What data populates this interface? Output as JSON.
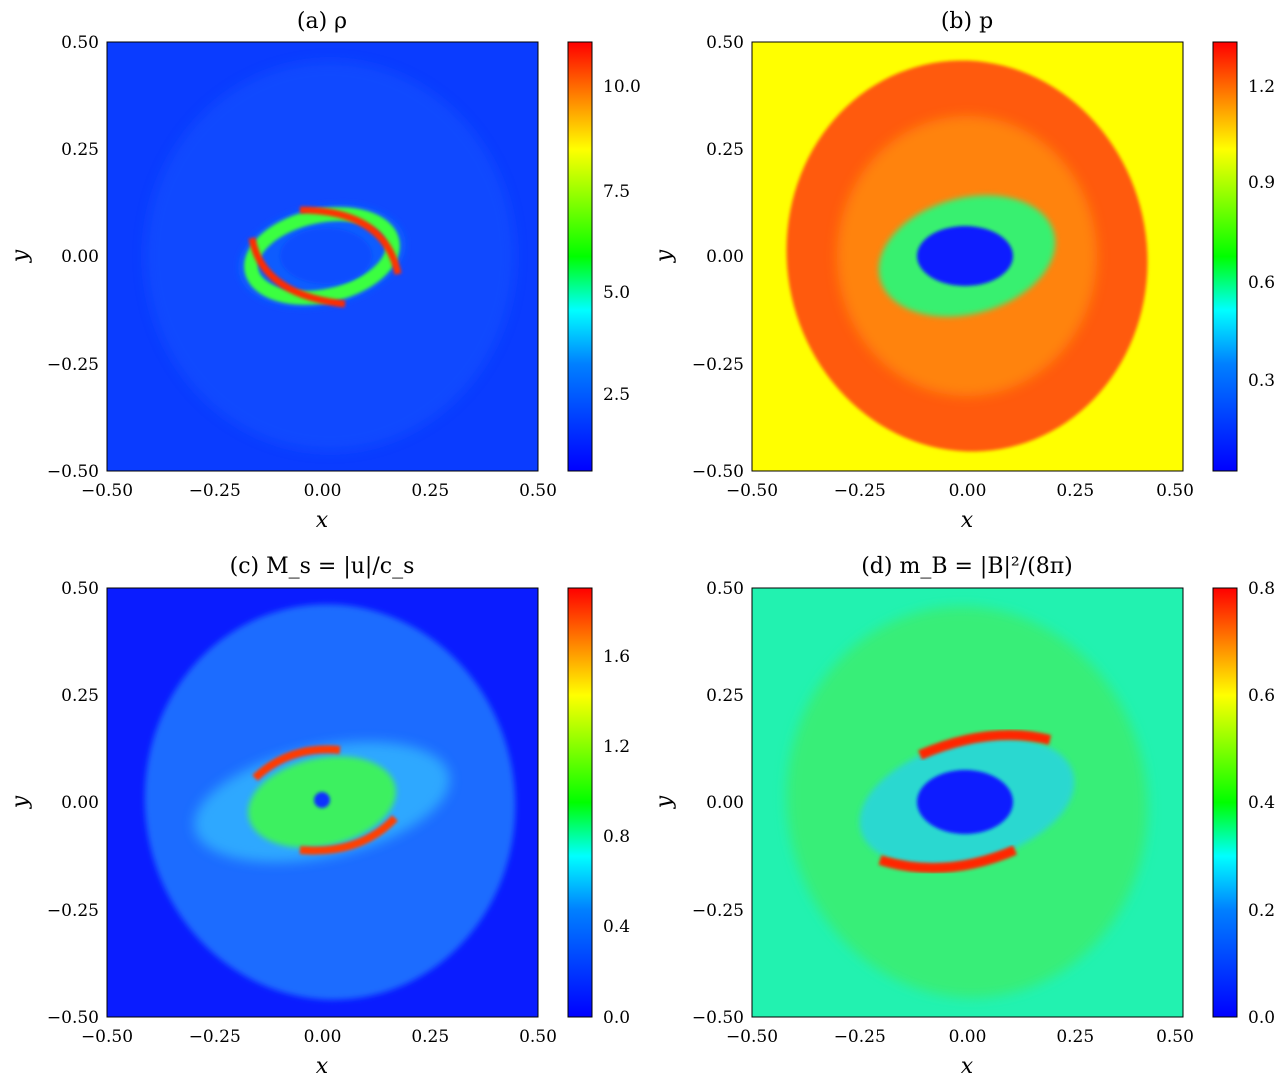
{
  "chart_data": [
    {
      "type": "heatmap",
      "panel": "a",
      "title": "(a) ρ",
      "xlabel": "x",
      "ylabel": "y",
      "xlim": [
        -0.5,
        0.5
      ],
      "ylim": [
        -0.5,
        0.5
      ],
      "xticks": [
        "−0.50",
        "−0.25",
        "0.00",
        "0.25",
        "0.50"
      ],
      "yticks": [
        "−0.50",
        "−0.25",
        "0.00",
        "0.25",
        "0.50"
      ],
      "colorbar": {
        "range": [
          0.5,
          11.2
        ],
        "ticks": [
          2.5,
          5.0,
          7.5,
          10.0
        ],
        "tick_labels": [
          "2.5",
          "5.0",
          "7.5",
          "10.0"
        ]
      },
      "background_value": 1.0,
      "features": [
        {
          "kind": "bubble",
          "cx": 0.02,
          "cy": 0.0,
          "rx": 0.42,
          "ry": 0.45,
          "value": 1.3
        },
        {
          "kind": "ring",
          "cx": 0.0,
          "cy": 0.0,
          "rx": 0.17,
          "ry": 0.09,
          "value": 6.5
        },
        {
          "kind": "arc",
          "cx": -0.13,
          "cy": -0.03,
          "value": 10.5
        },
        {
          "kind": "arc",
          "cx": 0.13,
          "cy": 0.03,
          "value": 10.5
        },
        {
          "kind": "core",
          "cx": 0.0,
          "cy": 0.0,
          "rx": 0.1,
          "ry": 0.06,
          "value": 1.0
        }
      ]
    },
    {
      "type": "heatmap",
      "panel": "b",
      "title": "(b) p",
      "xlabel": "x",
      "ylabel": "y",
      "xlim": [
        -0.5,
        0.5
      ],
      "ylim": [
        -0.5,
        0.5
      ],
      "xticks": [
        "−0.50",
        "−0.25",
        "0.00",
        "0.25",
        "0.50"
      ],
      "yticks": [
        "−0.50",
        "−0.25",
        "0.00",
        "0.25",
        "0.50"
      ],
      "colorbar": {
        "range": [
          0.05,
          1.32
        ],
        "ticks": [
          0.3,
          0.6,
          0.9,
          1.2
        ],
        "tick_labels": [
          "0.3",
          "0.6",
          "0.9",
          "1.2"
        ]
      },
      "background_value": 1.0,
      "features": [
        {
          "kind": "bubble",
          "cx": 0.0,
          "cy": 0.0,
          "rx": 0.42,
          "ry": 0.45,
          "value": 1.2
        },
        {
          "kind": "ring",
          "cx": 0.0,
          "cy": 0.0,
          "rx": 0.2,
          "ry": 0.12,
          "value": 0.6
        },
        {
          "kind": "core",
          "cx": 0.0,
          "cy": 0.0,
          "rx": 0.1,
          "ry": 0.07,
          "value": 0.1
        }
      ]
    },
    {
      "type": "heatmap",
      "panel": "c",
      "title": "(c) M_s = |u|/c_s",
      "xlabel": "x",
      "ylabel": "y",
      "xlim": [
        -0.5,
        0.5
      ],
      "ylim": [
        -0.5,
        0.5
      ],
      "xticks": [
        "−0.50",
        "−0.25",
        "0.00",
        "0.25",
        "0.50"
      ],
      "yticks": [
        "−0.50",
        "−0.25",
        "0.00",
        "0.25",
        "0.50"
      ],
      "colorbar": {
        "range": [
          0.0,
          1.9
        ],
        "ticks": [
          0.0,
          0.4,
          0.8,
          1.2,
          1.6
        ],
        "tick_labels": [
          "0.0",
          "0.4",
          "0.8",
          "1.2",
          "1.6"
        ]
      },
      "background_value": 0.0,
      "features": [
        {
          "kind": "bubble",
          "cx": 0.02,
          "cy": 0.0,
          "rx": 0.42,
          "ry": 0.45,
          "value": 0.25
        },
        {
          "kind": "ring",
          "cx": 0.0,
          "cy": 0.0,
          "rx": 0.18,
          "ry": 0.1,
          "value": 1.0
        },
        {
          "kind": "arc",
          "cx": -0.12,
          "cy": 0.06,
          "value": 1.8
        },
        {
          "kind": "arc",
          "cx": 0.14,
          "cy": -0.06,
          "value": 1.8
        },
        {
          "kind": "core",
          "cx": 0.0,
          "cy": 0.0,
          "rx": 0.02,
          "ry": 0.02,
          "value": 0.0
        }
      ]
    },
    {
      "type": "heatmap",
      "panel": "d",
      "title": "(d) m_B = |B|²/(8π)",
      "xlabel": "x",
      "ylabel": "y",
      "xlim": [
        -0.5,
        0.5
      ],
      "ylim": [
        -0.5,
        0.5
      ],
      "xticks": [
        "−0.50",
        "−0.25",
        "0.00",
        "0.25",
        "0.50"
      ],
      "yticks": [
        "−0.50",
        "−0.25",
        "0.00",
        "0.25",
        "0.50"
      ],
      "colorbar": {
        "range": [
          0.0,
          0.8
        ],
        "ticks": [
          0.0,
          0.2,
          0.4,
          0.6,
          0.8
        ],
        "tick_labels": [
          "0.0",
          "0.2",
          "0.4",
          "0.6",
          "0.8"
        ]
      },
      "background_value": 0.3,
      "features": [
        {
          "kind": "bubble",
          "cx": 0.0,
          "cy": 0.0,
          "rx": 0.42,
          "ry": 0.45,
          "value": 0.36
        },
        {
          "kind": "arc",
          "cx": 0.05,
          "cy": 0.13,
          "value": 0.78
        },
        {
          "kind": "arc",
          "cx": -0.05,
          "cy": -0.13,
          "value": 0.78
        },
        {
          "kind": "core",
          "cx": 0.0,
          "cy": 0.0,
          "rx": 0.1,
          "ry": 0.07,
          "value": 0.0
        }
      ]
    }
  ]
}
